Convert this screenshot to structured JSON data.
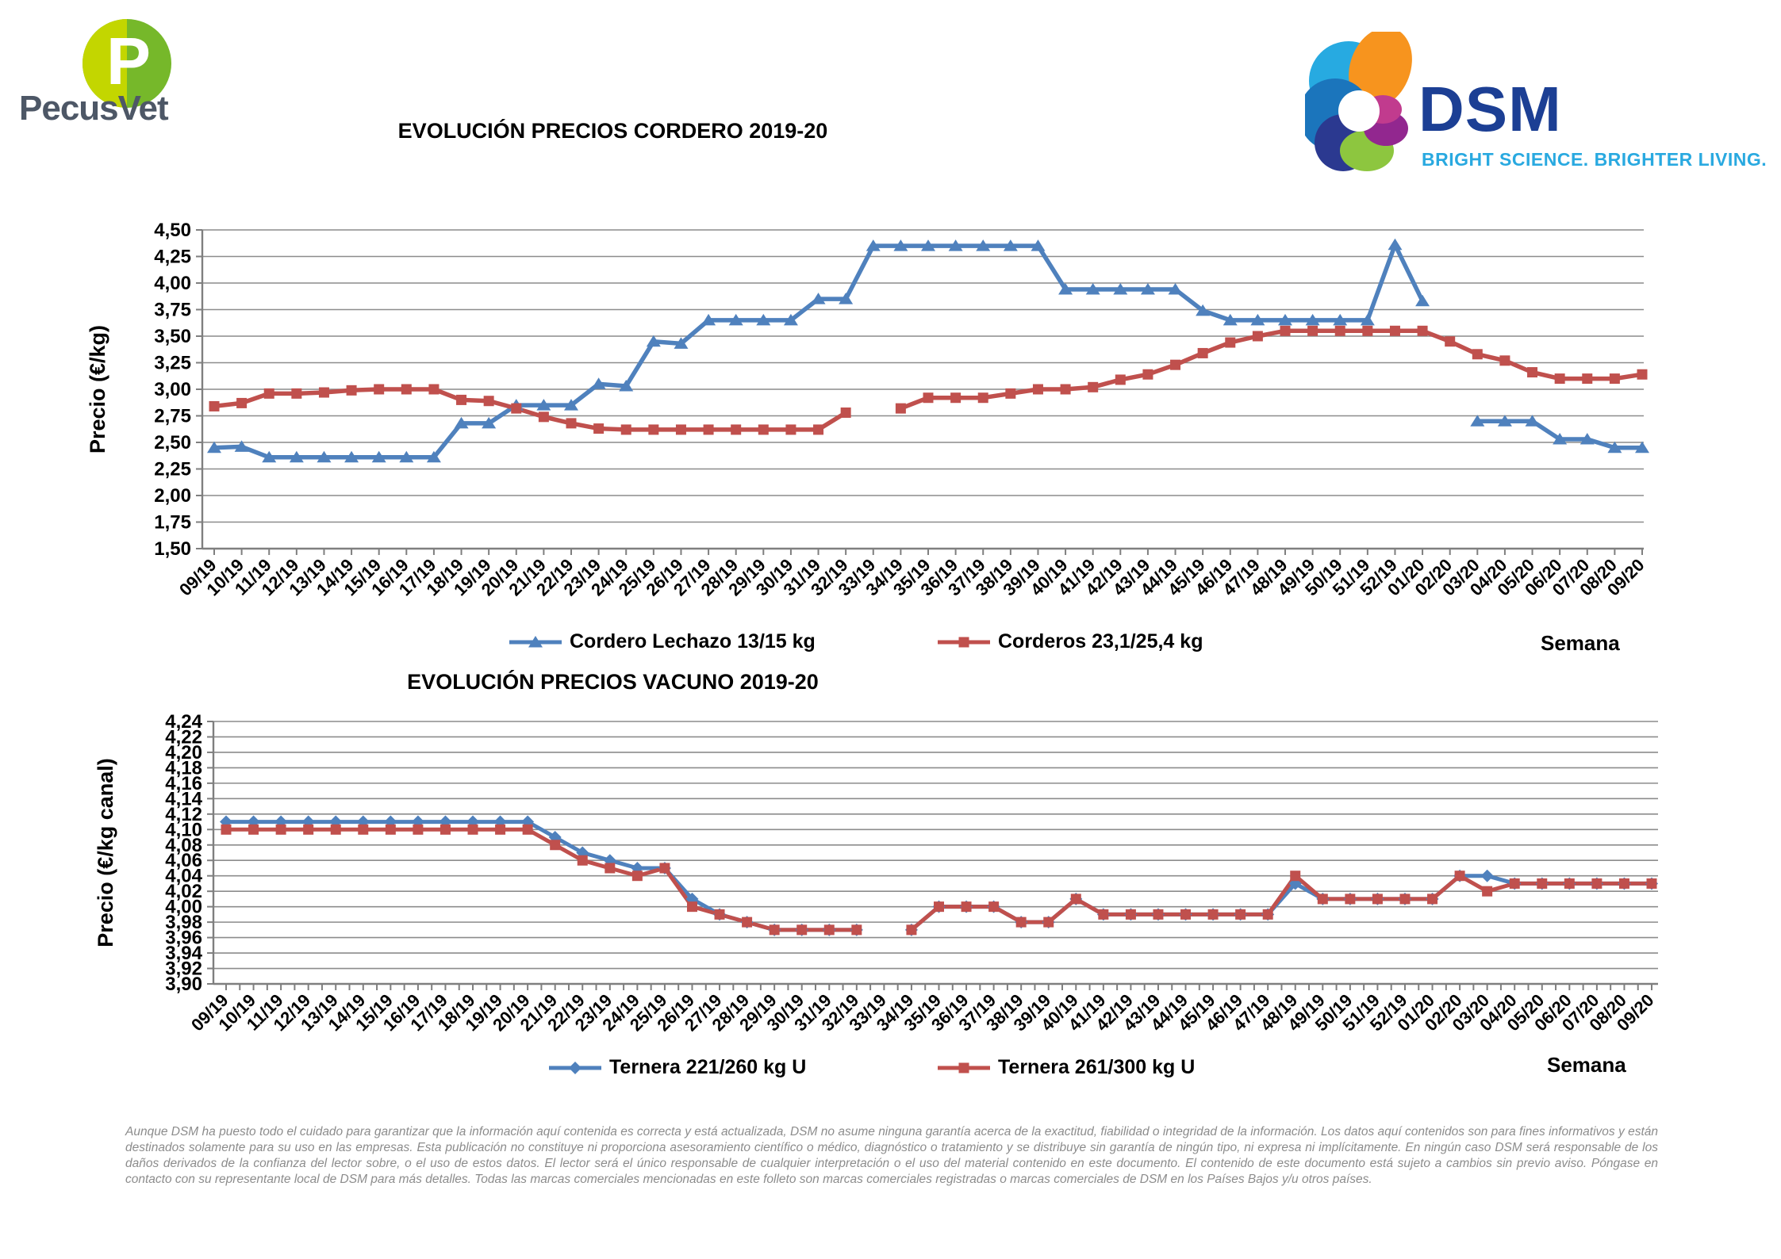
{
  "header": {
    "pecusvet": {
      "name": "PecusVet",
      "monogram": "P",
      "color_left": "#c3d600",
      "color_right": "#76b82a",
      "text_color": "#4d5766"
    },
    "dsm": {
      "name": "DSM",
      "tagline": "BRIGHT SCIENCE. BRIGHTER LIVING.",
      "name_color": "#1c3f94",
      "tagline_color": "#29a9e0"
    }
  },
  "chart_data": [
    {
      "type": "line",
      "title": "EVOLUCIÓN PRECIOS CORDERO 2019-20",
      "ylabel": "Precio (€/kg)",
      "xlabel": "Semana",
      "ylim": [
        1.5,
        4.5
      ],
      "ystep": 0.25,
      "grid": true,
      "legend_position": "bottom",
      "categories": [
        "09/19",
        "10/19",
        "11/19",
        "12/19",
        "13/19",
        "14/19",
        "15/19",
        "16/19",
        "17/19",
        "18/19",
        "19/19",
        "20/19",
        "21/19",
        "22/19",
        "23/19",
        "24/19",
        "25/19",
        "26/19",
        "27/19",
        "28/19",
        "29/19",
        "30/19",
        "31/19",
        "32/19",
        "33/19",
        "34/19",
        "35/19",
        "36/19",
        "37/19",
        "38/19",
        "39/19",
        "40/19",
        "41/19",
        "42/19",
        "43/19",
        "44/19",
        "45/19",
        "46/19",
        "47/19",
        "48/19",
        "49/19",
        "50/19",
        "51/19",
        "52/19",
        "01/20",
        "02/20",
        "03/20",
        "04/20",
        "05/20",
        "06/20",
        "07/20",
        "08/20",
        "09/20"
      ],
      "series": [
        {
          "name": "Cordero Lechazo 13/15 kg",
          "color": "#4F81BD",
          "marker": "triangle",
          "values": [
            2.45,
            2.46,
            2.36,
            2.36,
            2.36,
            2.36,
            2.36,
            2.36,
            2.36,
            2.68,
            2.68,
            2.85,
            2.85,
            2.85,
            3.05,
            3.03,
            3.45,
            3.43,
            3.65,
            3.65,
            3.65,
            3.65,
            3.85,
            3.85,
            4.35,
            4.35,
            4.35,
            4.35,
            4.35,
            4.35,
            4.35,
            3.94,
            3.94,
            3.94,
            3.94,
            3.94,
            3.74,
            3.65,
            3.65,
            3.65,
            3.65,
            3.65,
            3.65,
            4.36,
            3.83,
            null,
            2.7,
            2.7,
            2.7,
            2.53,
            2.53,
            2.45,
            2.45
          ]
        },
        {
          "name": "Corderos 23,1/25,4 kg",
          "color": "#C0504D",
          "marker": "square",
          "values": [
            2.84,
            2.87,
            2.96,
            2.96,
            2.97,
            2.99,
            3.0,
            3.0,
            3.0,
            2.9,
            2.89,
            2.82,
            2.74,
            2.68,
            2.63,
            2.62,
            2.62,
            2.62,
            2.62,
            2.62,
            2.62,
            2.62,
            2.62,
            2.78,
            null,
            2.82,
            2.92,
            2.92,
            2.92,
            2.96,
            3.0,
            3.0,
            3.02,
            3.09,
            3.14,
            3.23,
            3.34,
            3.44,
            3.5,
            3.55,
            3.55,
            3.55,
            3.55,
            3.55,
            3.55,
            3.45,
            3.33,
            3.27,
            3.16,
            3.1,
            3.1,
            3.1,
            3.14
          ]
        }
      ]
    },
    {
      "type": "line",
      "title": "EVOLUCIÓN PRECIOS VACUNO 2019-20",
      "ylabel": "Precio (€/kg canal)",
      "xlabel": "Semana",
      "ylim": [
        3.9,
        4.24
      ],
      "ystep": 0.02,
      "grid": true,
      "legend_position": "bottom",
      "categories": [
        "09/19",
        "10/19",
        "11/19",
        "12/19",
        "13/19",
        "14/19",
        "15/19",
        "16/19",
        "17/19",
        "18/19",
        "19/19",
        "20/19",
        "21/19",
        "22/19",
        "23/19",
        "24/19",
        "25/19",
        "26/19",
        "27/19",
        "28/19",
        "29/19",
        "30/19",
        "31/19",
        "32/19",
        "33/19",
        "34/19",
        "35/19",
        "36/19",
        "37/19",
        "38/19",
        "39/19",
        "40/19",
        "41/19",
        "42/19",
        "43/19",
        "44/19",
        "45/19",
        "46/19",
        "47/19",
        "48/19",
        "49/19",
        "50/19",
        "51/19",
        "52/19",
        "01/20",
        "02/20",
        "03/20",
        "04/20",
        "05/20",
        "06/20",
        "07/20",
        "08/20",
        "09/20"
      ],
      "series": [
        {
          "name": "Ternera 221/260 kg U",
          "color": "#4F81BD",
          "marker": "diamond",
          "values": [
            4.11,
            4.11,
            4.11,
            4.11,
            4.11,
            4.11,
            4.11,
            4.11,
            4.11,
            4.11,
            4.11,
            4.11,
            4.09,
            4.07,
            4.06,
            4.05,
            4.05,
            4.01,
            3.99,
            3.98,
            3.97,
            3.97,
            3.97,
            3.97,
            null,
            3.97,
            4.0,
            4.0,
            4.0,
            3.98,
            3.98,
            4.01,
            3.99,
            3.99,
            3.99,
            3.99,
            3.99,
            3.99,
            3.99,
            4.03,
            4.01,
            4.01,
            4.01,
            4.01,
            4.01,
            4.04,
            4.04,
            4.03,
            4.03,
            4.03,
            4.03,
            4.03,
            4.03
          ]
        },
        {
          "name": "Ternera 261/300 kg U",
          "color": "#C0504D",
          "marker": "square",
          "values": [
            4.1,
            4.1,
            4.1,
            4.1,
            4.1,
            4.1,
            4.1,
            4.1,
            4.1,
            4.1,
            4.1,
            4.1,
            4.08,
            4.06,
            4.05,
            4.04,
            4.05,
            4.0,
            3.99,
            3.98,
            3.97,
            3.97,
            3.97,
            3.97,
            null,
            3.97,
            4.0,
            4.0,
            4.0,
            3.98,
            3.98,
            4.01,
            3.99,
            3.99,
            3.99,
            3.99,
            3.99,
            3.99,
            3.99,
            4.04,
            4.01,
            4.01,
            4.01,
            4.01,
            4.01,
            4.04,
            4.02,
            4.03,
            4.03,
            4.03,
            4.03,
            4.03,
            4.03
          ]
        }
      ]
    }
  ],
  "footer": {
    "disclaimer": "Aunque DSM ha puesto todo el cuidado para garantizar que la información aquí contenida es correcta y está actualizada, DSM no asume ninguna garantía acerca de la exactitud, fiabilidad o integridad de la información. Los datos aquí contenidos son para fines informativos y están destinados solamente para su uso en las empresas. Esta publicación no constituye ni proporciona asesoramiento científico o médico, diagnóstico o tratamiento y se distribuye sin garantía de ningún tipo, ni expresa ni implícitamente. En ningún caso DSM será responsable de los daños derivados de la confianza del lector sobre, o el uso de estos datos. El lector será el único responsable de cualquier interpretación o el uso del material contenido en este documento. El contenido de este documento está sujeto a cambios sin previo aviso. Póngase en contacto con su representante local de DSM para más detalles. Todas las marcas comerciales mencionadas en este folleto son marcas comerciales registradas o marcas comerciales de DSM en los Países Bajos y/u otros países."
  }
}
